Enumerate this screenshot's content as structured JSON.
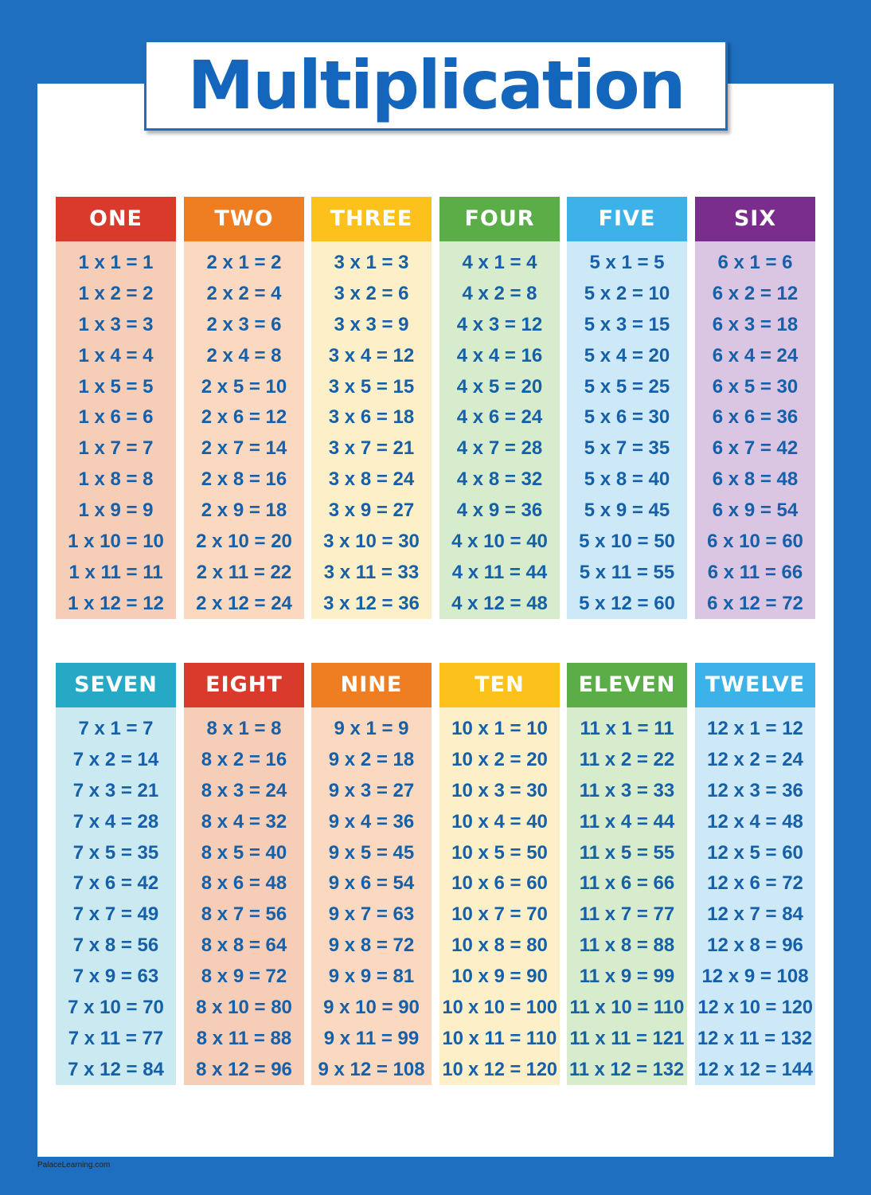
{
  "title": "Multiplication",
  "footer": "PalaceLearning.com",
  "tables": [
    {
      "header": "ONE",
      "rows": [
        "1 x 1 = 1",
        "1 x 2 = 2",
        "1 x 3 = 3",
        "1 x 4 = 4",
        "1 x 5 = 5",
        "1 x 6 = 6",
        "1 x 7 = 7",
        "1 x 8 = 8",
        "1 x 9 = 9",
        "1 x 10 = 10",
        "1 x 11 = 11",
        "1 x 12 = 12"
      ]
    },
    {
      "header": "TWO",
      "rows": [
        "2 x 1 = 2",
        "2 x 2 = 4",
        "2 x 3 = 6",
        "2 x 4 = 8",
        "2 x 5 = 10",
        "2 x 6 = 12",
        "2 x 7 = 14",
        "2 x 8 = 16",
        "2 x 9 = 18",
        "2 x 10 = 20",
        "2 x 11 = 22",
        "2 x 12 = 24"
      ]
    },
    {
      "header": "THREE",
      "rows": [
        "3 x 1 = 3",
        "3 x 2 = 6",
        "3 x 3 = 9",
        "3 x 4 = 12",
        "3 x 5 = 15",
        "3 x 6 = 18",
        "3 x 7 = 21",
        "3 x 8 = 24",
        "3 x 9 = 27",
        "3 x 10 = 30",
        "3 x 11 = 33",
        "3 x 12 = 36"
      ]
    },
    {
      "header": "FOUR",
      "rows": [
        "4 x 1 = 4",
        "4 x 2 = 8",
        "4 x 3 = 12",
        "4 x 4 = 16",
        "4 x 5 = 20",
        "4 x 6 = 24",
        "4 x 7 = 28",
        "4 x 8 = 32",
        "4 x 9 = 36",
        "4 x 10 = 40",
        "4 x 11 = 44",
        "4 x 12 = 48"
      ]
    },
    {
      "header": "FIVE",
      "rows": [
        "5 x 1 = 5",
        "5 x 2 = 10",
        "5 x 3 = 15",
        "5 x 4 = 20",
        "5 x 5 = 25",
        "5 x 6 = 30",
        "5 x 7 = 35",
        "5 x 8 = 40",
        "5 x 9 = 45",
        "5 x 10 = 50",
        "5 x 11 = 55",
        "5 x 12 = 60"
      ]
    },
    {
      "header": "SIX",
      "rows": [
        "6 x 1 = 6",
        "6 x 2 = 12",
        "6 x 3 = 18",
        "6 x 4 = 24",
        "6 x 5 = 30",
        "6 x 6 = 36",
        "6 x 7 = 42",
        "6 x 8 = 48",
        "6 x 9 = 54",
        "6 x 10 = 60",
        "6 x 11 = 66",
        "6 x 12 = 72"
      ]
    },
    {
      "header": "SEVEN",
      "rows": [
        "7 x 1 = 7",
        "7 x 2 = 14",
        "7 x 3 = 21",
        "7 x 4 = 28",
        "7 x 5 = 35",
        "7 x 6 = 42",
        "7 x 7 = 49",
        "7 x 8 = 56",
        "7 x 9 = 63",
        "7 x 10 = 70",
        "7 x 11 = 77",
        "7 x 12 = 84"
      ]
    },
    {
      "header": "EIGHT",
      "rows": [
        "8 x 1 = 8",
        "8 x 2 = 16",
        "8 x 3 = 24",
        "8 x 4 = 32",
        "8 x 5 = 40",
        "8 x 6 = 48",
        "8 x 7 = 56",
        "8 x 8 = 64",
        "8 x 9 = 72",
        "8 x 10 = 80",
        "8 x 11 = 88",
        "8 x 12 = 96"
      ]
    },
    {
      "header": "NINE",
      "rows": [
        "9 x 1 = 9",
        "9 x 2 = 18",
        "9 x 3 = 27",
        "9 x 4 = 36",
        "9 x 5 = 45",
        "9 x 6 = 54",
        "9 x 7 = 63",
        "9 x 8 = 72",
        "9 x 9 = 81",
        "9 x 10 = 90",
        "9 x 11 = 99",
        "9 x 12 = 108"
      ]
    },
    {
      "header": "TEN",
      "rows": [
        "10 x 1 = 10",
        "10 x 2 = 20",
        "10 x 3 = 30",
        "10 x 4 = 40",
        "10 x 5 = 50",
        "10 x 6 = 60",
        "10 x 7 = 70",
        "10 x 8 = 80",
        "10 x 9 = 90",
        "10 x 10 = 100",
        "10 x 11 = 110",
        "10 x 12 = 120"
      ]
    },
    {
      "header": "ELEVEN",
      "rows": [
        "11 x 1 = 11",
        "11 x 2 = 22",
        "11 x 3 = 33",
        "11 x 4 = 44",
        "11 x 5 = 55",
        "11 x 6 = 66",
        "11 x 7 = 77",
        "11 x 8 = 88",
        "11 x 9 = 99",
        "11 x 10 = 110",
        "11 x 11 = 121",
        "11 x 12 = 132"
      ]
    },
    {
      "header": "TWELVE",
      "rows": [
        "12 x 1 = 12",
        "12 x 2 = 24",
        "12 x 3 = 36",
        "12 x 4 = 48",
        "12 x 5 = 60",
        "12 x 6 = 72",
        "12 x 7 = 84",
        "12 x 8 = 96",
        "12 x 9 = 108",
        "12 x 10 = 120",
        "12 x 11 = 132",
        "12 x 12 = 144"
      ]
    }
  ]
}
